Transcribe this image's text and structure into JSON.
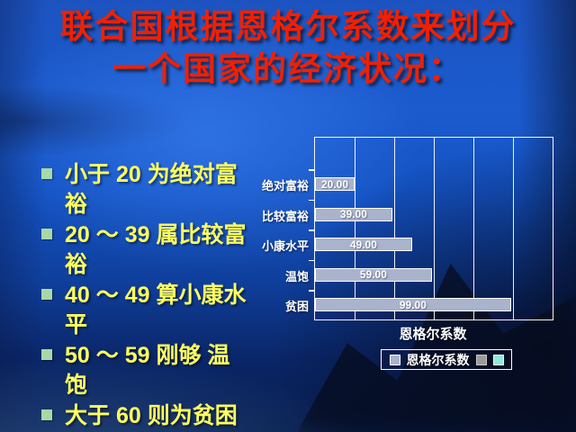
{
  "slide": {
    "title_line1": "联合国根据恩格尔系数来划分",
    "title_line2": "一个国家的经济状况："
  },
  "bullets": [
    {
      "label": "小于 20 为绝对富\n裕"
    },
    {
      "label": "20 ～ 39 属比较富\n裕"
    },
    {
      "label": "40 ～ 49 算小康水\n平"
    },
    {
      "label": "50 ～ 59 刚够 温\n饱"
    },
    {
      "label": "大于 60 则为贫困"
    }
  ],
  "chart_data": {
    "type": "bar",
    "orientation": "horizontal",
    "categories": [
      "绝对富裕",
      "比较富裕",
      "小康水平",
      "温饱",
      "贫困"
    ],
    "series": [
      {
        "name": "恩格尔系数",
        "values": [
          20,
          39,
          49,
          59,
          99
        ]
      }
    ],
    "value_labels": [
      "20.00",
      "39.00",
      "49.00",
      "59.00",
      "99.00"
    ],
    "xlabel": "恩格尔系数",
    "xlim": [
      0,
      120
    ],
    "grid_interval": 20,
    "grid": true,
    "legend": {
      "position": "bottom",
      "entries": [
        "恩格尔系数"
      ]
    }
  },
  "colors": {
    "title_red": "#f02000",
    "bullet_text_yellow": "#ffff5e",
    "bullet_square_green": "#a8d8a8",
    "bar_fill": "#a9b3cc",
    "chart_text": "#ffffff",
    "legend_swatch_bar": "#a9b3cc",
    "legend_swatch_gray": "#9b9b9b",
    "legend_swatch_cyan": "#8fe8da"
  }
}
